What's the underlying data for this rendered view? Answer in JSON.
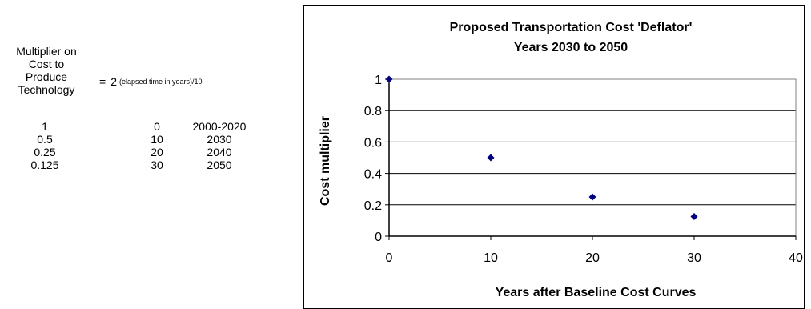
{
  "left_panel": {
    "multiplier_label_lines": [
      "Multiplier on",
      "Cost to",
      "Produce",
      "Technology"
    ],
    "formula": {
      "equals": "=",
      "base": "2",
      "exponent": "-(elapsed time in years)/10"
    },
    "table_rows": [
      {
        "multiplier": "1",
        "years": "0",
        "period": "2000-2020"
      },
      {
        "multiplier": "0.5",
        "years": "10",
        "period": "2030"
      },
      {
        "multiplier": "0.25",
        "years": "20",
        "period": "2040"
      },
      {
        "multiplier": "0.125",
        "years": "30",
        "period": "2050"
      }
    ]
  },
  "chart_data": {
    "type": "scatter",
    "title_lines": [
      "Proposed Transportation Cost 'Deflator'",
      "Years 2030 to 2050"
    ],
    "xlabel": "Years after Baseline Cost Curves",
    "ylabel": "Cost multiplier",
    "xlim": [
      0,
      40
    ],
    "ylim": [
      0,
      1
    ],
    "xticks": [
      0,
      10,
      20,
      30,
      40
    ],
    "yticks": [
      0,
      0.2,
      0.4,
      0.6,
      0.8,
      1
    ],
    "ytick_labels": [
      "0",
      "0.2",
      "0.4",
      "0.6",
      "0.8",
      "1"
    ],
    "grid": "horizontal",
    "legend": "none",
    "marker_color": "#000080",
    "series": [
      {
        "x": [
          0,
          10,
          20,
          30
        ],
        "y": [
          1,
          0.5,
          0.25,
          0.125
        ]
      }
    ]
  }
}
